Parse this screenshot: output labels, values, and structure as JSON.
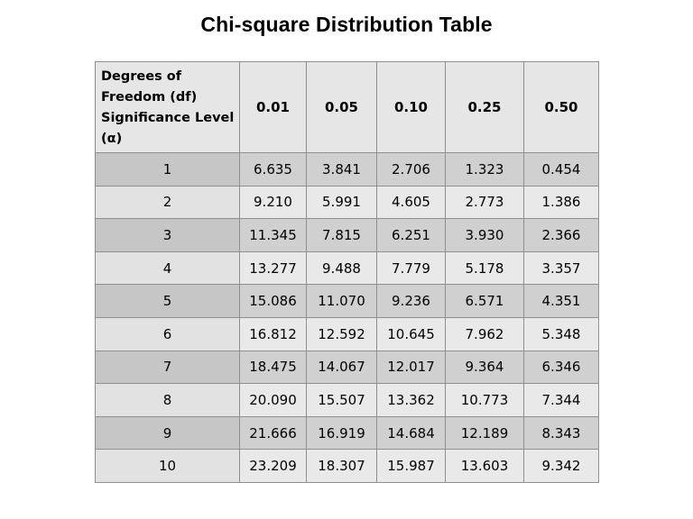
{
  "title": "Chi-square Distribution Table",
  "table": {
    "corner_header": [
      "Degrees of",
      "Freedom (df)",
      "Significance Level",
      "(α)"
    ],
    "alpha_levels": [
      "0.01",
      "0.05",
      "0.10",
      "0.25",
      "0.50"
    ],
    "rows": [
      {
        "df": "1",
        "values": [
          "6.635",
          "3.841",
          "2.706",
          "1.323",
          "0.454"
        ]
      },
      {
        "df": "2",
        "values": [
          "9.210",
          "5.991",
          "4.605",
          "2.773",
          "1.386"
        ]
      },
      {
        "df": "3",
        "values": [
          "11.345",
          "7.815",
          "6.251",
          "3.930",
          "2.366"
        ]
      },
      {
        "df": "4",
        "values": [
          "13.277",
          "9.488",
          "7.779",
          "5.178",
          "3.357"
        ]
      },
      {
        "df": "5",
        "values": [
          "15.086",
          "11.070",
          "9.236",
          "6.571",
          "4.351"
        ]
      },
      {
        "df": "6",
        "values": [
          "16.812",
          "12.592",
          "10.645",
          "7.962",
          "5.348"
        ]
      },
      {
        "df": "7",
        "values": [
          "18.475",
          "14.067",
          "12.017",
          "9.364",
          "6.346"
        ]
      },
      {
        "df": "8",
        "values": [
          "20.090",
          "15.507",
          "13.362",
          "10.773",
          "7.344"
        ]
      },
      {
        "df": "9",
        "values": [
          "21.666",
          "16.919",
          "14.684",
          "12.189",
          "8.343"
        ]
      },
      {
        "df": "10",
        "values": [
          "23.209",
          "18.307",
          "15.987",
          "13.603",
          "9.342"
        ]
      }
    ]
  },
  "colors": {
    "header_bg": "#e6e6e6",
    "row_dark": "#d0d0d0",
    "row_light": "#e9e9e9",
    "border": "#8f8f8f"
  }
}
